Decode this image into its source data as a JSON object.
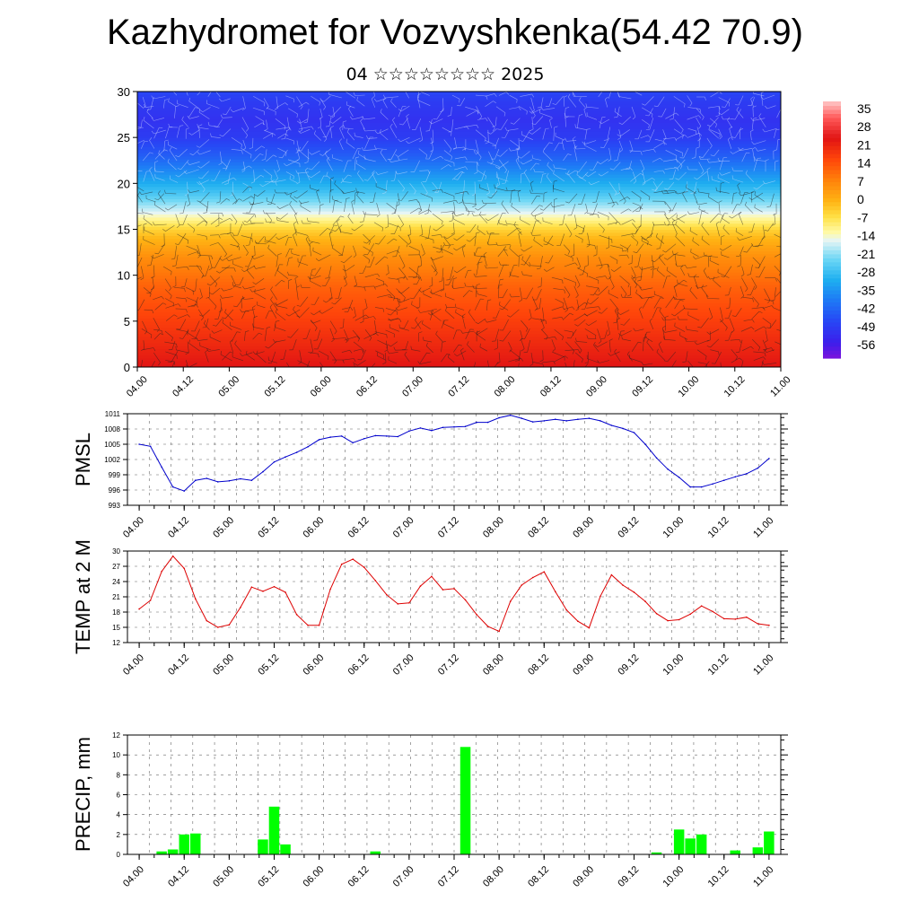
{
  "title": "Kazhydromet for Vozvyshkenka(54.42 70.9)",
  "subtitle": "04 ☆☆☆☆☆☆☆☆ 2025",
  "time_ticks": [
    "04.00",
    "04.12",
    "05.00",
    "05.12",
    "06.00",
    "06.12",
    "07.00",
    "07.12",
    "08.00",
    "08.12",
    "09.00",
    "09.12",
    "10.00",
    "10.12",
    "11.00"
  ],
  "colors": {
    "pmsl_line": "#0000cc",
    "temp_line": "#dd0000",
    "precip_bar": "#00ff00",
    "grid": "#666666"
  },
  "chart_data": [
    {
      "type": "heatmap",
      "name": "cross-section",
      "ylim": [
        0,
        30
      ],
      "yticks": [
        "0",
        "5",
        "10",
        "15",
        "20",
        "25",
        "30"
      ],
      "xlim": [
        "04.00",
        "11.00"
      ],
      "colorbar_labels": [
        "35",
        "28",
        "21",
        "14",
        "7",
        "0",
        "-7",
        "-14",
        "-21",
        "-28",
        "-35",
        "-42",
        "-49",
        "-56"
      ],
      "colorbar_range": [
        -60,
        38
      ],
      "level_temperature_profile": {
        "level": [
          0,
          3,
          6,
          9,
          12,
          14,
          15,
          16,
          17,
          19,
          21,
          23,
          25,
          27,
          29,
          30
        ],
        "value": [
          24,
          20,
          16,
          12,
          6,
          0,
          -4,
          -10,
          -16,
          -26,
          -34,
          -42,
          -48,
          -50,
          -48,
          -46
        ]
      },
      "overlay": "wind barbs"
    },
    {
      "type": "line",
      "ylabel": "PMSL",
      "ylim": [
        993,
        1011
      ],
      "yticks": [
        "993",
        "996",
        "999",
        "1002",
        "1005",
        "1008",
        "1011"
      ],
      "x": [
        "04.00",
        "04.03",
        "04.06",
        "04.09",
        "04.12",
        "04.15",
        "04.18",
        "04.21",
        "05.00",
        "05.03",
        "05.06",
        "05.09",
        "05.12",
        "05.15",
        "05.18",
        "05.21",
        "06.00",
        "06.03",
        "06.06",
        "06.09",
        "06.12",
        "06.15",
        "06.18",
        "06.21",
        "07.00",
        "07.03",
        "07.06",
        "07.09",
        "07.12",
        "07.15",
        "07.18",
        "07.21",
        "08.00",
        "08.03",
        "08.06",
        "08.09",
        "08.12",
        "08.15",
        "08.18",
        "08.21",
        "09.00",
        "09.03",
        "09.06",
        "09.09",
        "09.12",
        "09.15",
        "09.18",
        "09.21",
        "10.00",
        "10.03",
        "10.06",
        "10.09",
        "10.12",
        "10.15",
        "10.18",
        "10.21",
        "11.00"
      ],
      "series": [
        {
          "values": [
            1005,
            1004.6,
            1000.5,
            996.6,
            995.8,
            997.9,
            998.3,
            997.6,
            997.8,
            998.2,
            997.9,
            999.6,
            1001.5,
            1002.5,
            1003.4,
            1004.5,
            1005.9,
            1006.4,
            1006.6,
            1005.3,
            1006.1,
            1006.7,
            1006.6,
            1006.5,
            1007.6,
            1008.2,
            1007.7,
            1008.3,
            1008.4,
            1008.5,
            1009.3,
            1009.3,
            1010.2,
            1010.7,
            1010.1,
            1009.4,
            1009.6,
            1009.9,
            1009.6,
            1009.9,
            1010.1,
            1009.6,
            1008.7,
            1008.1,
            1007.3,
            1005,
            1002.3,
            1000.1,
            998.5,
            996.6,
            996.6,
            997.2,
            997.9,
            998.6,
            999.2,
            1000.3,
            1002.2
          ]
        }
      ]
    },
    {
      "type": "line",
      "ylabel": "TEMP at 2 M",
      "ylim": [
        12,
        30
      ],
      "yticks": [
        "12",
        "15",
        "18",
        "21",
        "24",
        "27",
        "30"
      ],
      "x": [
        "04.00",
        "04.03",
        "04.06",
        "04.09",
        "04.12",
        "04.15",
        "04.18",
        "04.21",
        "05.00",
        "05.03",
        "05.06",
        "05.09",
        "05.12",
        "05.15",
        "05.18",
        "05.21",
        "06.00",
        "06.03",
        "06.06",
        "06.09",
        "06.12",
        "06.15",
        "06.18",
        "06.21",
        "07.00",
        "07.03",
        "07.06",
        "07.09",
        "07.12",
        "07.15",
        "07.18",
        "07.21",
        "08.00",
        "08.03",
        "08.06",
        "08.09",
        "08.12",
        "08.15",
        "08.18",
        "08.21",
        "09.00",
        "09.03",
        "09.06",
        "09.09",
        "09.12",
        "09.15",
        "09.18",
        "09.21",
        "10.00",
        "10.03",
        "10.06",
        "10.09",
        "10.12",
        "10.15",
        "10.18",
        "10.21",
        "11.00"
      ],
      "series": [
        {
          "values": [
            18.6,
            20.3,
            26,
            29,
            26.6,
            20.6,
            16.3,
            15,
            15.5,
            18.9,
            22.9,
            22.1,
            23,
            21.9,
            17.5,
            15.4,
            15.4,
            22.5,
            27.4,
            28.4,
            26.8,
            24.2,
            21.4,
            19.6,
            19.8,
            23.1,
            25,
            22.4,
            22.6,
            20.4,
            17.5,
            15.2,
            14.2,
            20.1,
            23.3,
            24.8,
            25.9,
            22,
            18.4,
            16.2,
            14.9,
            21.1,
            25.3,
            23.3,
            21.9,
            20.1,
            17.7,
            16.3,
            16.5,
            17.6,
            19.2,
            18.1,
            16.7,
            16.6,
            17,
            15.7,
            15.4
          ]
        }
      ]
    },
    {
      "type": "bar",
      "ylabel": "PRECIP, mm",
      "ylim": [
        0,
        12
      ],
      "yticks": [
        "0",
        "2",
        "4",
        "6",
        "8",
        "10",
        "12"
      ],
      "categories": [
        "04.00",
        "04.03",
        "04.06",
        "04.09",
        "04.12",
        "04.15",
        "04.18",
        "04.21",
        "05.00",
        "05.03",
        "05.06",
        "05.09",
        "05.12",
        "05.15",
        "05.18",
        "05.21",
        "06.00",
        "06.03",
        "06.06",
        "06.09",
        "06.12",
        "06.15",
        "06.18",
        "06.21",
        "07.00",
        "07.03",
        "07.06",
        "07.09",
        "07.12",
        "07.15",
        "07.18",
        "07.21",
        "08.00",
        "08.03",
        "08.06",
        "08.09",
        "08.12",
        "08.15",
        "08.18",
        "08.21",
        "09.00",
        "09.03",
        "09.06",
        "09.09",
        "09.12",
        "09.15",
        "09.18",
        "09.21",
        "10.00",
        "10.03",
        "10.06",
        "10.09",
        "10.12",
        "10.15",
        "10.18",
        "10.21",
        "11.00"
      ],
      "values": [
        0,
        0,
        0.3,
        0.5,
        2,
        2.1,
        0,
        0,
        0,
        0,
        0,
        1.5,
        4.8,
        1,
        0,
        0,
        0,
        0,
        0,
        0,
        0,
        0.3,
        0,
        0,
        0,
        0,
        0,
        0,
        0,
        10.8,
        0,
        0,
        0,
        0,
        0,
        0,
        0,
        0,
        0,
        0,
        0,
        0,
        0,
        0,
        0,
        0,
        0.2,
        0,
        2.5,
        1.6,
        2,
        0,
        0,
        0.4,
        0,
        0.7,
        2.3
      ]
    }
  ]
}
